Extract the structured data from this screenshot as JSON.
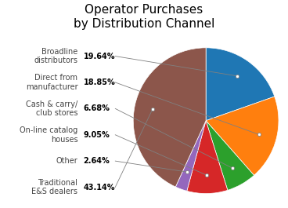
{
  "chart_data": {
    "type": "pie",
    "title": "Operator Purchases\nby Distribution Channel",
    "categories": [
      "Broadline\ndistributors",
      "Direct from\nmanufacturer",
      "Cash & carry/\nclub stores",
      "On-line catalog\nhouses",
      "Other",
      "Traditional\nE&S dealers"
    ],
    "values": [
      19.64,
      18.85,
      6.68,
      9.05,
      2.64,
      43.14
    ],
    "value_labels": [
      "19.64%",
      "18.85%",
      "6.68%",
      "9.05%",
      "2.64%",
      "43.14%"
    ],
    "data_labels": true
  }
}
